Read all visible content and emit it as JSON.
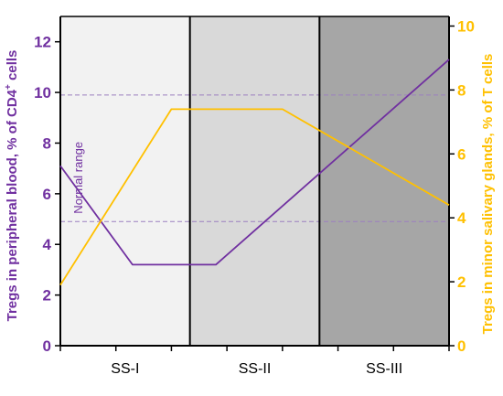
{
  "chart_data": {
    "type": "line",
    "categories": [
      "SS-I",
      "SS-II",
      "SS-III"
    ],
    "region_colors": [
      "#f2f2f2",
      "#d9d9d9",
      "#a6a6a6"
    ],
    "x_ticks": [
      0,
      1,
      2,
      3,
      4,
      5,
      6,
      7
    ],
    "y_left": {
      "label": "Tregs in peripheral blood, % of CD4+ cells",
      "ylim": [
        0,
        13
      ],
      "ticks": [
        0,
        2,
        4,
        6,
        8,
        10,
        12
      ],
      "color": "#7030a0"
    },
    "y_right": {
      "label": "Tregs in minor salivary glands, % of T cells",
      "ylim": [
        0,
        10.3
      ],
      "ticks": [
        0,
        2,
        4,
        6,
        8,
        10
      ],
      "color": "#ffc000"
    },
    "normal_range": {
      "label": "Normal range",
      "low": 4.9,
      "high": 9.9,
      "color": "#9b7fc0"
    },
    "series": [
      {
        "axis": "left",
        "color": "#7030a0",
        "points": [
          [
            0,
            7.1
          ],
          [
            1.3,
            3.2
          ],
          [
            2.8,
            3.2
          ],
          [
            7,
            11.3
          ]
        ]
      },
      {
        "axis": "right",
        "color": "#ffc000",
        "points": [
          [
            0,
            1.9
          ],
          [
            2,
            7.4
          ],
          [
            4,
            7.4
          ],
          [
            7,
            4.4
          ]
        ]
      }
    ]
  }
}
